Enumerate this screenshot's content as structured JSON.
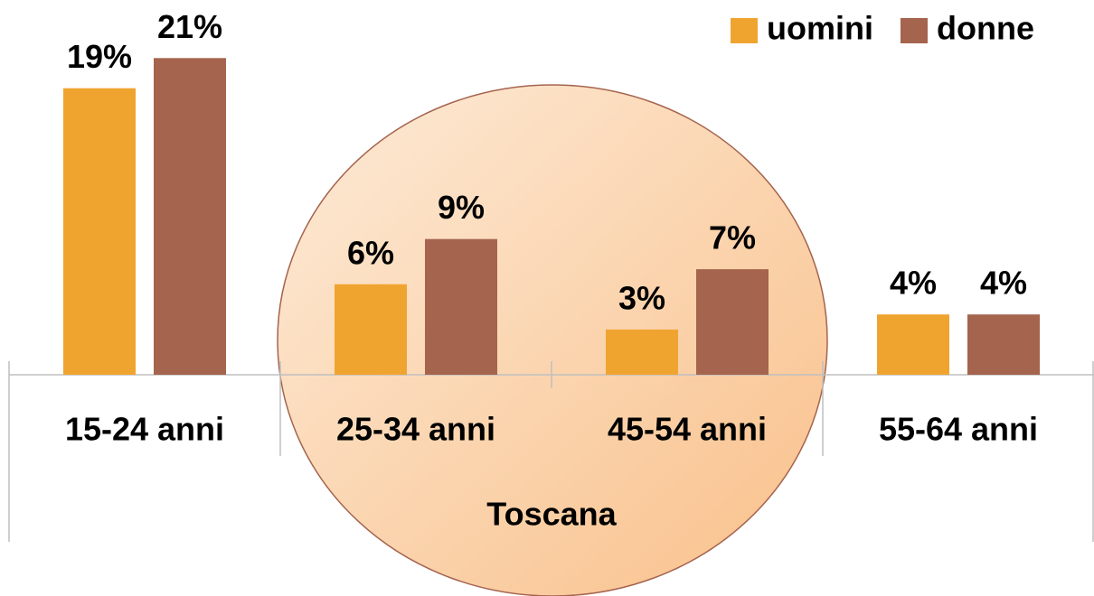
{
  "chart_data": {
    "type": "bar",
    "categories": [
      "15-24 anni",
      "25-34 anni",
      "45-54 anni",
      "55-64 anni"
    ],
    "series": [
      {
        "name": "uomini",
        "color": "#f0a430",
        "values": [
          19,
          6,
          3,
          4
        ],
        "value_labels": [
          "19%",
          "6%",
          "3%",
          "4%"
        ]
      },
      {
        "name": "donne",
        "color": "#a5644e",
        "values": [
          21,
          9,
          7,
          4
        ],
        "value_labels": [
          "21%",
          "9%",
          "7%",
          "4%"
        ]
      }
    ],
    "annotation": "Toscana",
    "legend": "top-right"
  }
}
